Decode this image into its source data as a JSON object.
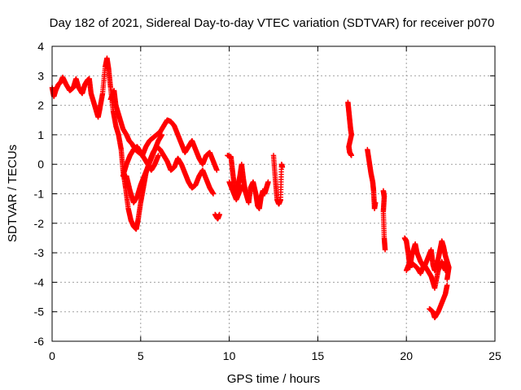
{
  "chart_data": {
    "type": "scatter",
    "title": "Day 182 of 2021, Sidereal Day-to-day VTEC variation (SDTVAR) for receiver p070",
    "xlabel": "GPS time / hours",
    "ylabel": "SDTVAR / TECUs",
    "xlim": [
      0,
      25
    ],
    "ylim": [
      -6,
      4
    ],
    "xticks": [
      0,
      5,
      10,
      15,
      20,
      25
    ],
    "yticks": [
      -6,
      -5,
      -4,
      -3,
      -2,
      -1,
      0,
      1,
      2,
      3,
      4
    ],
    "grid": true,
    "marker": "+",
    "color": "#ff0000",
    "series": [
      {
        "name": "SDTVAR",
        "segments": [
          [
            [
              0.0,
              2.6
            ],
            [
              0.1,
              2.3
            ],
            [
              0.2,
              2.5
            ],
            [
              0.35,
              2.7
            ],
            [
              0.5,
              2.8
            ],
            [
              0.6,
              2.95
            ],
            [
              0.8,
              2.7
            ],
            [
              1.0,
              2.5
            ],
            [
              1.2,
              2.6
            ],
            [
              1.35,
              2.9
            ],
            [
              1.5,
              2.6
            ],
            [
              1.7,
              2.4
            ],
            [
              1.85,
              2.7
            ],
            [
              2.0,
              2.85
            ],
            [
              2.1,
              2.9
            ],
            [
              2.2,
              2.4
            ],
            [
              2.35,
              2.1
            ],
            [
              2.5,
              1.8
            ],
            [
              2.6,
              1.6
            ],
            [
              2.7,
              1.9
            ],
            [
              2.85,
              2.4
            ],
            [
              3.0,
              3.3
            ],
            [
              3.1,
              3.6
            ],
            [
              3.2,
              3.2
            ],
            [
              3.3,
              2.6
            ],
            [
              3.45,
              1.8
            ],
            [
              3.6,
              1.3
            ],
            [
              3.75,
              1.0
            ],
            [
              3.9,
              0.5
            ],
            [
              4.0,
              -0.2
            ],
            [
              4.15,
              -0.8
            ],
            [
              4.3,
              -1.5
            ],
            [
              4.45,
              -1.9
            ],
            [
              4.6,
              -2.1
            ],
            [
              4.75,
              -2.2
            ],
            [
              4.85,
              -1.9
            ],
            [
              5.0,
              -1.3
            ],
            [
              5.15,
              -0.8
            ],
            [
              5.3,
              -0.3
            ],
            [
              5.5,
              0.1
            ],
            [
              5.7,
              0.4
            ],
            [
              5.9,
              0.6
            ],
            [
              6.1,
              0.5
            ],
            [
              6.3,
              0.3
            ],
            [
              6.5,
              0.1
            ],
            [
              6.7,
              -0.2
            ],
            [
              6.9,
              -0.1
            ],
            [
              7.1,
              0.2
            ],
            [
              7.3,
              0.0
            ],
            [
              7.5,
              -0.3
            ],
            [
              7.7,
              -0.6
            ],
            [
              7.9,
              -0.8
            ],
            [
              8.1,
              -0.7
            ],
            [
              8.3,
              -0.4
            ],
            [
              8.5,
              -0.2
            ],
            [
              8.7,
              -0.5
            ],
            [
              8.9,
              -0.8
            ],
            [
              9.1,
              -1.0
            ]
          ],
          [
            [
              3.3,
              2.2
            ],
            [
              3.5,
              2.5
            ],
            [
              3.6,
              2.0
            ],
            [
              3.8,
              1.6
            ],
            [
              4.0,
              1.2
            ],
            [
              4.2,
              1.0
            ],
            [
              4.35,
              0.8
            ],
            [
              4.5,
              0.7
            ],
            [
              4.7,
              0.5
            ],
            [
              4.9,
              0.4
            ],
            [
              5.1,
              0.3
            ],
            [
              5.3,
              0.6
            ],
            [
              5.5,
              0.8
            ],
            [
              5.7,
              0.9
            ],
            [
              5.9,
              1.0
            ],
            [
              6.1,
              1.1
            ],
            [
              6.3,
              1.3
            ],
            [
              6.5,
              1.5
            ],
            [
              6.7,
              1.45
            ],
            [
              6.9,
              1.3
            ],
            [
              7.1,
              1.0
            ],
            [
              7.3,
              0.7
            ],
            [
              7.5,
              0.4
            ],
            [
              7.7,
              0.6
            ],
            [
              7.9,
              0.8
            ],
            [
              8.1,
              0.5
            ],
            [
              8.3,
              0.2
            ],
            [
              8.5,
              0.0
            ],
            [
              8.7,
              0.3
            ],
            [
              8.9,
              0.4
            ],
            [
              9.1,
              0.1
            ],
            [
              9.3,
              -0.2
            ]
          ],
          [
            [
              4.0,
              -0.4
            ],
            [
              4.2,
              0.0
            ],
            [
              4.4,
              0.3
            ],
            [
              4.6,
              0.5
            ],
            [
              4.8,
              0.6
            ],
            [
              5.0,
              0.4
            ],
            [
              5.2,
              0.2
            ],
            [
              5.4,
              0.0
            ],
            [
              5.6,
              -0.2
            ],
            [
              5.8,
              0.0
            ],
            [
              6.0,
              0.3
            ]
          ],
          [
            [
              4.2,
              -0.4
            ],
            [
              4.4,
              -0.9
            ],
            [
              4.6,
              -1.3
            ],
            [
              4.8,
              -1.1
            ],
            [
              5.0,
              -0.7
            ],
            [
              5.2,
              -0.4
            ],
            [
              5.4,
              -0.1
            ],
            [
              5.6,
              0.2
            ],
            [
              5.8,
              0.5
            ],
            [
              6.0,
              0.8
            ],
            [
              6.2,
              1.0
            ]
          ],
          [
            [
              9.2,
              -1.7
            ],
            [
              9.35,
              -1.85
            ],
            [
              9.45,
              -1.7
            ]
          ],
          [
            [
              9.9,
              0.3
            ],
            [
              10.1,
              0.25
            ],
            [
              10.2,
              -0.3
            ],
            [
              10.3,
              -0.8
            ],
            [
              10.4,
              -1.0
            ],
            [
              10.5,
              -0.7
            ],
            [
              10.6,
              -0.4
            ],
            [
              10.7,
              0.0
            ],
            [
              10.8,
              -0.5
            ],
            [
              10.9,
              -0.9
            ],
            [
              11.0,
              -1.1
            ],
            [
              11.1,
              -1.3
            ],
            [
              11.2,
              -0.8
            ],
            [
              11.35,
              -0.6
            ],
            [
              11.5,
              -1.0
            ],
            [
              11.6,
              -1.4
            ],
            [
              11.7,
              -1.5
            ],
            [
              11.8,
              -1.1
            ],
            [
              11.9,
              -0.9
            ],
            [
              12.0,
              -1.0
            ],
            [
              12.1,
              -0.8
            ],
            [
              12.2,
              -0.6
            ]
          ],
          [
            [
              10.0,
              -0.6
            ],
            [
              10.2,
              -0.9
            ],
            [
              10.4,
              -1.2
            ],
            [
              10.6,
              -0.9
            ],
            [
              10.8,
              -0.7
            ]
          ],
          [
            [
              12.5,
              0.3
            ],
            [
              12.6,
              -0.5
            ],
            [
              12.7,
              -1.2
            ],
            [
              12.8,
              -1.35
            ],
            [
              12.9,
              -1.2
            ],
            [
              12.95,
              0.0
            ],
            [
              13.0,
              -0.1
            ]
          ],
          [
            [
              16.7,
              2.1
            ],
            [
              16.75,
              1.8
            ],
            [
              16.8,
              1.5
            ],
            [
              16.85,
              1.2
            ],
            [
              16.9,
              1.0
            ],
            [
              16.75,
              0.6
            ],
            [
              16.8,
              0.4
            ],
            [
              16.9,
              0.3
            ]
          ],
          [
            [
              17.8,
              0.5
            ],
            [
              17.9,
              0.1
            ],
            [
              18.0,
              -0.3
            ],
            [
              18.1,
              -0.6
            ],
            [
              18.15,
              -0.9
            ],
            [
              18.2,
              -1.5
            ],
            [
              18.25,
              -1.3
            ]
          ],
          [
            [
              18.7,
              -0.9
            ],
            [
              18.75,
              -1.1
            ],
            [
              18.7,
              -1.6
            ],
            [
              18.75,
              -2.5
            ],
            [
              18.8,
              -2.9
            ]
          ],
          [
            [
              19.9,
              -2.5
            ],
            [
              20.0,
              -2.6
            ],
            [
              20.1,
              -3.0
            ],
            [
              20.2,
              -3.5
            ],
            [
              20.3,
              -3.1
            ],
            [
              20.5,
              -2.7
            ],
            [
              20.6,
              -3.0
            ],
            [
              20.8,
              -3.3
            ],
            [
              21.0,
              -3.5
            ],
            [
              21.2,
              -3.2
            ],
            [
              21.4,
              -2.9
            ],
            [
              21.5,
              -3.4
            ],
            [
              21.6,
              -3.6
            ],
            [
              21.8,
              -3.2
            ],
            [
              21.9,
              -2.9
            ],
            [
              22.0,
              -2.6
            ],
            [
              22.1,
              -2.8
            ],
            [
              22.2,
              -3.1
            ],
            [
              22.3,
              -3.3
            ],
            [
              22.4,
              -3.5
            ],
            [
              22.3,
              -3.9
            ]
          ],
          [
            [
              20.0,
              -3.6
            ],
            [
              20.2,
              -3.3
            ],
            [
              20.4,
              -3.4
            ],
            [
              20.6,
              -3.5
            ],
            [
              20.8,
              -3.7
            ],
            [
              21.0,
              -3.4
            ],
            [
              21.2,
              -3.6
            ],
            [
              21.4,
              -3.8
            ],
            [
              21.6,
              -4.2
            ],
            [
              21.8,
              -3.6
            ],
            [
              22.0,
              -3.3
            ],
            [
              22.2,
              -3.6
            ]
          ],
          [
            [
              21.3,
              -4.9
            ],
            [
              21.5,
              -5.0
            ],
            [
              21.6,
              -5.2
            ],
            [
              21.8,
              -5.0
            ],
            [
              22.0,
              -4.7
            ],
            [
              22.2,
              -4.4
            ],
            [
              22.3,
              -4.1
            ]
          ]
        ]
      }
    ]
  }
}
